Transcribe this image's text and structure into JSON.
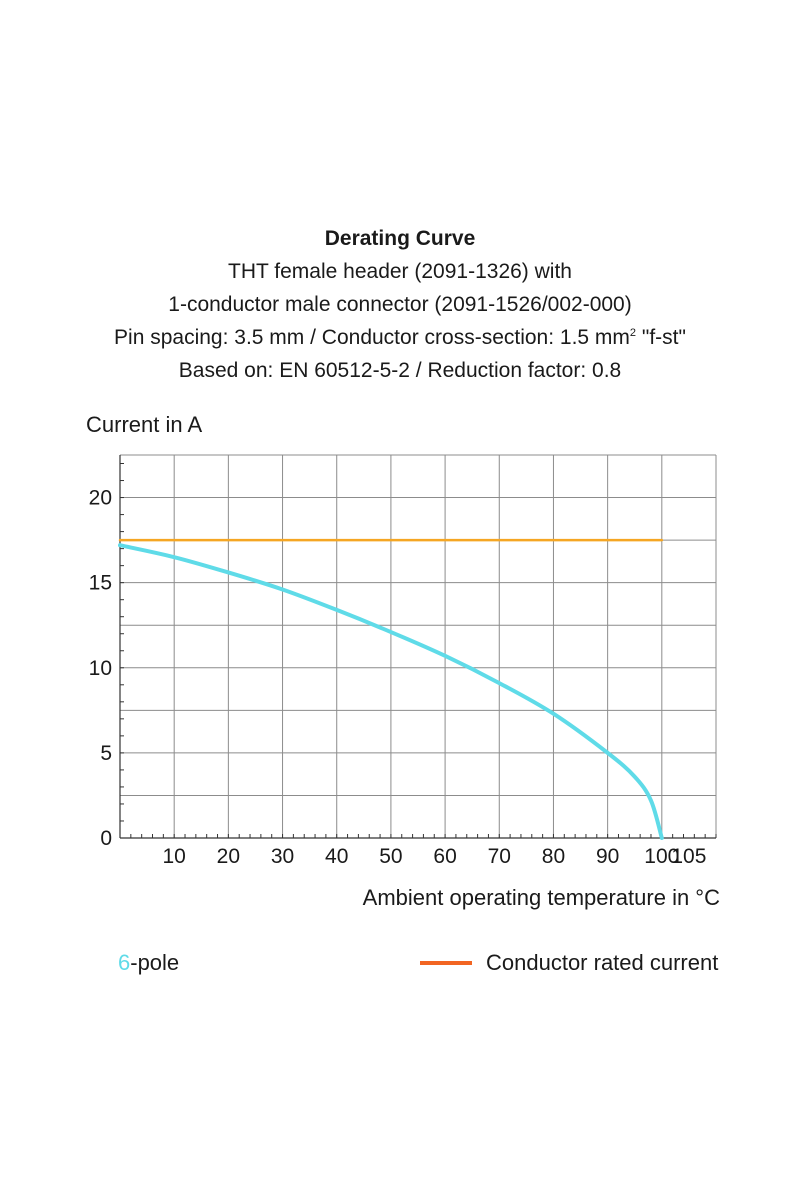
{
  "title_lines": {
    "title": "Derating Curve",
    "line1": "THT female header (2091-1326) with",
    "line2": "1-conductor male connector (2091-1526/002-000)",
    "line3_pre": "Pin spacing: 3.5 mm / Conductor cross-section: 1.5 mm",
    "line3_sup": "2",
    "line3_post": " \"f-st\"",
    "line4": "Based on: EN 60512-5-2 / Reduction factor: 0.8"
  },
  "chart_data": {
    "type": "line",
    "title": "Derating Curve",
    "xlabel": "Ambient operating temperature in °C",
    "ylabel": "Current in A",
    "xlim": [
      0,
      110
    ],
    "ylim": [
      0,
      22.5
    ],
    "x_ticks": [
      10,
      20,
      30,
      40,
      50,
      60,
      70,
      80,
      90,
      100,
      105
    ],
    "y_ticks": [
      0,
      5,
      10,
      15,
      20
    ],
    "grid": true,
    "legend_placement": "bottom",
    "series": [
      {
        "name": "6-pole",
        "color": "#5fdbe8",
        "x": [
          0,
          10,
          20,
          30,
          40,
          50,
          60,
          70,
          80,
          90,
          95,
          98,
          100
        ],
        "y": [
          17.2,
          16.5,
          15.6,
          14.6,
          13.4,
          12.1,
          10.7,
          9.1,
          7.3,
          5.0,
          3.6,
          2.2,
          0
        ]
      },
      {
        "name": "Conductor rated current",
        "color": "#f5a623",
        "x": [
          0,
          100
        ],
        "y": [
          17.5,
          17.5
        ]
      }
    ]
  },
  "legend": {
    "pole_number": "6",
    "pole_suffix": "-pole",
    "rated_current_label": "Conductor rated current",
    "rated_current_swatch_color": "#f26522"
  }
}
